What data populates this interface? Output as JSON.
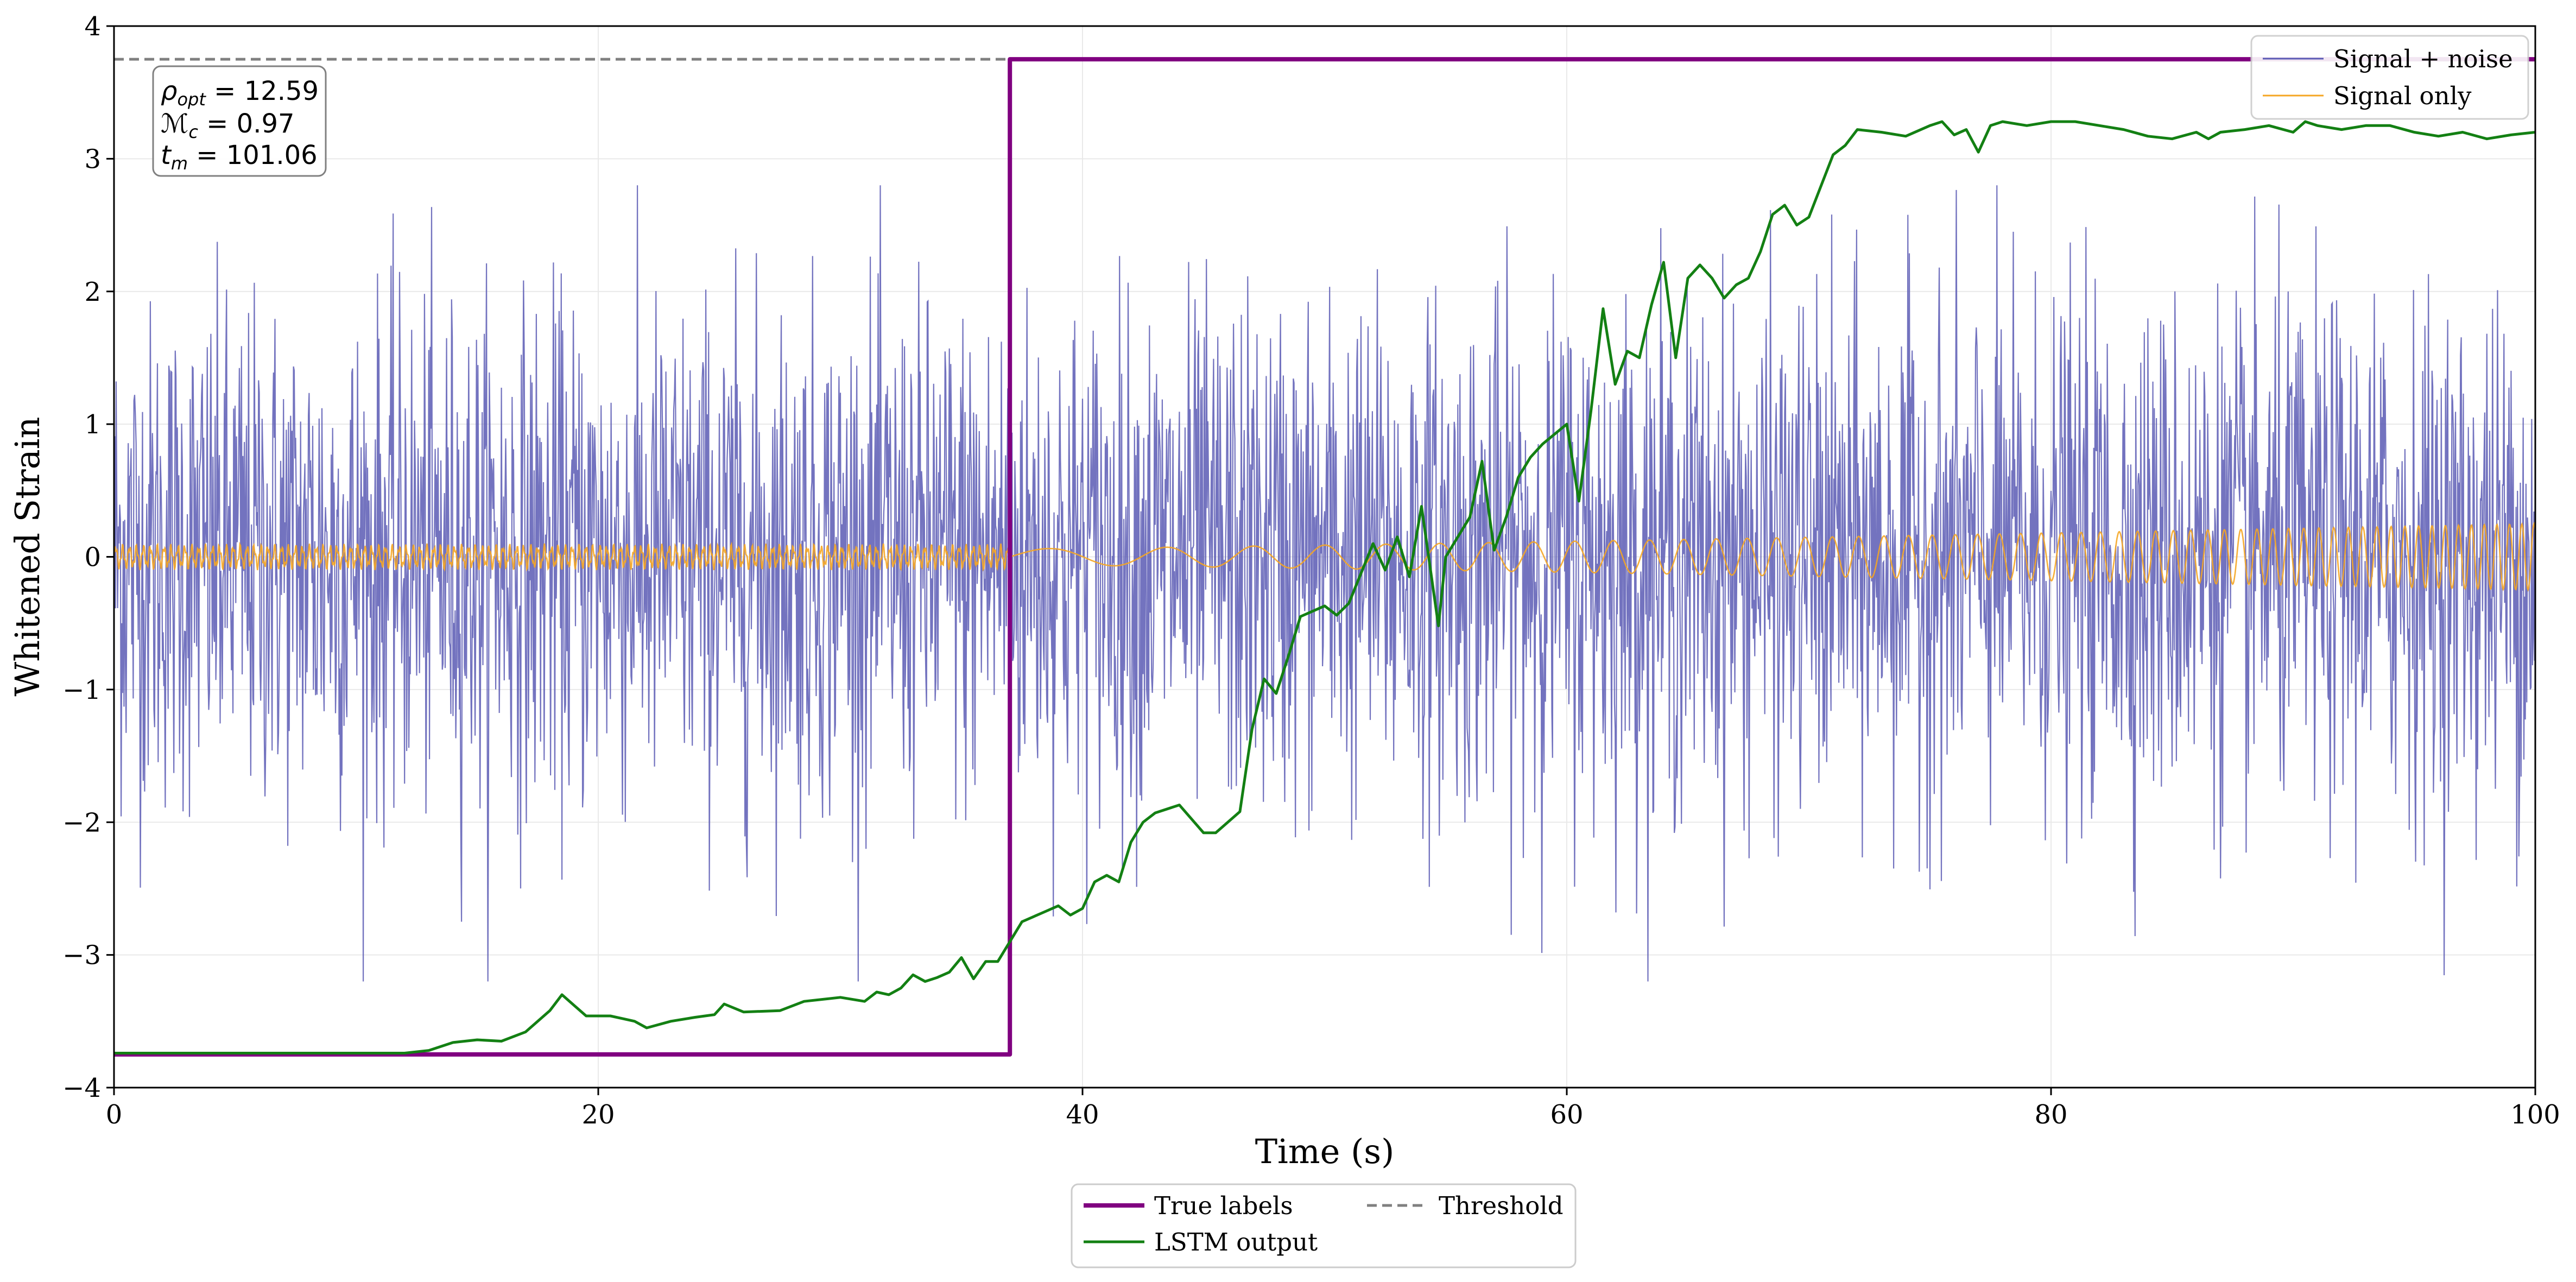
{
  "chart_data": {
    "type": "line",
    "title": "",
    "xlabel": "Time (s)",
    "ylabel": "Whitened Strain",
    "xlim": [
      0,
      100
    ],
    "ylim": [
      -4,
      4
    ],
    "xticks": [
      0,
      20,
      40,
      60,
      80,
      100
    ],
    "yticks": [
      -4,
      -3,
      -2,
      -1,
      0,
      1,
      2,
      3,
      4
    ],
    "x_tick_labels": [
      "0",
      "20",
      "40",
      "60",
      "80",
      "100"
    ],
    "y_tick_labels": [
      "−4",
      "−3",
      "−2",
      "−1",
      "0",
      "1",
      "2",
      "3",
      "4"
    ],
    "grid": true,
    "annotation": {
      "lines": [
        "ρ_opt = 12.59",
        "ℳ_c = 0.97",
        "t_m = 101.06"
      ]
    },
    "threshold": 3.75,
    "series": [
      {
        "name": "Signal + noise",
        "color": "#5a5ab4",
        "description": "whitened strain, noise-dominated, approx. zero mean, amplitude mostly within ±2.8",
        "x_range": [
          0,
          100
        ],
        "approx_amplitude": 2.8
      },
      {
        "name": "Signal only",
        "color": "#f5a623",
        "description": "chirp signal growing in amplitude toward the end",
        "x_range": [
          0,
          100
        ],
        "approx_amplitude_end": 0.25
      },
      {
        "name": "True labels",
        "color": "#800080",
        "points": [
          [
            0,
            -3.75
          ],
          [
            37,
            -3.75
          ],
          [
            37,
            3.75
          ],
          [
            100,
            3.75
          ]
        ]
      },
      {
        "name": "LSTM output",
        "color": "#138013",
        "points": [
          [
            0,
            -3.74
          ],
          [
            12,
            -3.74
          ],
          [
            13,
            -3.72
          ],
          [
            14,
            -3.66
          ],
          [
            15,
            -3.64
          ],
          [
            16,
            -3.65
          ],
          [
            17,
            -3.58
          ],
          [
            18,
            -3.42
          ],
          [
            18.5,
            -3.3
          ],
          [
            19,
            -3.38
          ],
          [
            19.5,
            -3.46
          ],
          [
            20.5,
            -3.46
          ],
          [
            21.5,
            -3.5
          ],
          [
            22,
            -3.55
          ],
          [
            23,
            -3.5
          ],
          [
            24,
            -3.47
          ],
          [
            24.8,
            -3.45
          ],
          [
            25.2,
            -3.37
          ],
          [
            26,
            -3.43
          ],
          [
            27.5,
            -3.42
          ],
          [
            28.5,
            -3.35
          ],
          [
            30,
            -3.32
          ],
          [
            31,
            -3.35
          ],
          [
            31.5,
            -3.28
          ],
          [
            32,
            -3.3
          ],
          [
            32.5,
            -3.25
          ],
          [
            33,
            -3.15
          ],
          [
            33.5,
            -3.2
          ],
          [
            34,
            -3.17
          ],
          [
            34.5,
            -3.13
          ],
          [
            35,
            -3.02
          ],
          [
            35.5,
            -3.18
          ],
          [
            36,
            -3.05
          ],
          [
            36.5,
            -3.05
          ],
          [
            37,
            -2.9
          ],
          [
            37.5,
            -2.75
          ],
          [
            38.5,
            -2.67
          ],
          [
            39,
            -2.63
          ],
          [
            39.5,
            -2.7
          ],
          [
            40,
            -2.65
          ],
          [
            40.5,
            -2.45
          ],
          [
            41,
            -2.4
          ],
          [
            41.5,
            -2.45
          ],
          [
            42,
            -2.15
          ],
          [
            42.5,
            -2.0
          ],
          [
            43,
            -1.93
          ],
          [
            44,
            -1.87
          ],
          [
            45,
            -2.08
          ],
          [
            45.5,
            -2.08
          ],
          [
            46.5,
            -1.92
          ],
          [
            47,
            -1.3
          ],
          [
            47.5,
            -0.92
          ],
          [
            48,
            -1.03
          ],
          [
            48.5,
            -0.75
          ],
          [
            49,
            -0.45
          ],
          [
            50,
            -0.37
          ],
          [
            50.5,
            -0.44
          ],
          [
            51,
            -0.35
          ],
          [
            52,
            0.1
          ],
          [
            52.5,
            -0.1
          ],
          [
            53,
            0.15
          ],
          [
            53.5,
            -0.15
          ],
          [
            54,
            0.38
          ],
          [
            54.7,
            -0.52
          ],
          [
            55,
            0.0
          ],
          [
            56,
            0.3
          ],
          [
            56.5,
            0.72
          ],
          [
            57,
            0.05
          ],
          [
            57.5,
            0.3
          ],
          [
            58,
            0.6
          ],
          [
            58.5,
            0.75
          ],
          [
            59,
            0.85
          ],
          [
            60,
            1.0
          ],
          [
            60.5,
            0.42
          ],
          [
            61,
            1.1
          ],
          [
            61.5,
            1.87
          ],
          [
            62,
            1.3
          ],
          [
            62.5,
            1.55
          ],
          [
            63,
            1.5
          ],
          [
            63.5,
            1.9
          ],
          [
            64,
            2.22
          ],
          [
            64.5,
            1.5
          ],
          [
            65,
            2.1
          ],
          [
            65.5,
            2.2
          ],
          [
            66,
            2.1
          ],
          [
            66.5,
            1.95
          ],
          [
            67,
            2.05
          ],
          [
            67.5,
            2.1
          ],
          [
            68,
            2.3
          ],
          [
            68.5,
            2.58
          ],
          [
            69,
            2.65
          ],
          [
            69.5,
            2.5
          ],
          [
            70,
            2.56
          ],
          [
            71,
            3.03
          ],
          [
            71.5,
            3.1
          ],
          [
            72,
            3.22
          ],
          [
            73,
            3.2
          ],
          [
            74,
            3.17
          ],
          [
            75,
            3.25
          ],
          [
            75.5,
            3.28
          ],
          [
            76,
            3.18
          ],
          [
            76.5,
            3.22
          ],
          [
            77,
            3.05
          ],
          [
            77.5,
            3.25
          ],
          [
            78,
            3.28
          ],
          [
            79,
            3.25
          ],
          [
            80,
            3.28
          ],
          [
            81,
            3.28
          ],
          [
            82,
            3.25
          ],
          [
            83,
            3.22
          ],
          [
            84,
            3.17
          ],
          [
            85,
            3.15
          ],
          [
            86,
            3.2
          ],
          [
            86.5,
            3.15
          ],
          [
            87,
            3.2
          ],
          [
            88,
            3.22
          ],
          [
            89,
            3.25
          ],
          [
            90,
            3.2
          ],
          [
            90.5,
            3.28
          ],
          [
            91,
            3.25
          ],
          [
            92,
            3.22
          ],
          [
            93,
            3.25
          ],
          [
            94,
            3.25
          ],
          [
            95,
            3.2
          ],
          [
            96,
            3.17
          ],
          [
            97,
            3.2
          ],
          [
            98,
            3.15
          ],
          [
            99,
            3.18
          ],
          [
            100,
            3.2
          ]
        ]
      },
      {
        "name": "Threshold",
        "color": "#808080",
        "style": "dashed",
        "points": [
          [
            0,
            3.75
          ],
          [
            100,
            3.75
          ]
        ]
      }
    ],
    "legends": [
      {
        "placement": "top-right",
        "entries": [
          "Signal + noise",
          "Signal only"
        ]
      },
      {
        "placement": "bottom-center",
        "entries": [
          "True labels",
          "LSTM output",
          "Threshold"
        ]
      }
    ]
  }
}
